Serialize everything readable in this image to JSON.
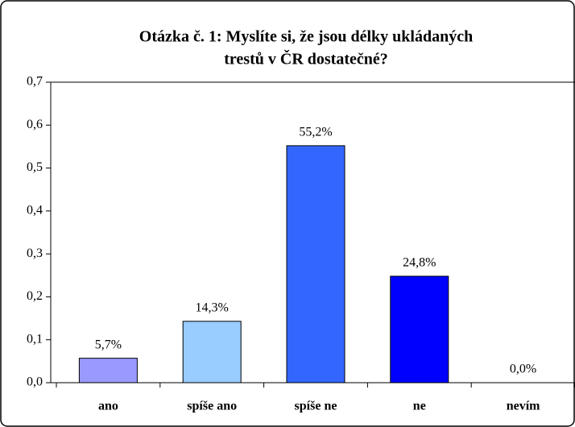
{
  "chart_data": {
    "type": "bar",
    "title": [
      "Otázka č. 1: Myslíte si, že jsou délky ukládaných",
      "trestů v ČR dostatečné?"
    ],
    "categories": [
      "ano",
      "spíše ano",
      "spíše ne",
      "ne",
      "nevím"
    ],
    "values": [
      0.057,
      0.143,
      0.552,
      0.248,
      0.0
    ],
    "value_labels": [
      "5,7%",
      "14,3%",
      "55,2%",
      "24,8%",
      "0,0%"
    ],
    "colors": [
      "#9999ff",
      "#99ccff",
      "#3366ff",
      "#0000ff",
      "#808080"
    ],
    "ylim": [
      0,
      0.7
    ],
    "yticks": [
      {
        "value": 0,
        "label": "0,0"
      },
      {
        "value": 0.1,
        "label": "0,1"
      },
      {
        "value": 0.2,
        "label": "0,2"
      },
      {
        "value": 0.3,
        "label": "0,3"
      },
      {
        "value": 0.4,
        "label": "0,4"
      },
      {
        "value": 0.5,
        "label": "0,5"
      },
      {
        "value": 0.6,
        "label": "0,6"
      },
      {
        "value": 0.7,
        "label": "0,7"
      }
    ],
    "grid": false
  }
}
